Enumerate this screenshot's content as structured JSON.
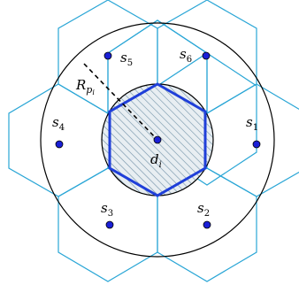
{
  "colors": {
    "cell_outline": "#2aa6d6",
    "center_outline": "#1f3fd9",
    "hatch": "#6f8fa6",
    "hatch_fill": "#e8eef2",
    "point": "#1a1fd6",
    "ring": "#000000",
    "radius_line": "#000000"
  },
  "labels": {
    "radius": {
      "main": "R",
      "sub": "p",
      "subsub": "i"
    },
    "center": {
      "main": "d",
      "sub": "i"
    },
    "sensors": [
      {
        "main": "s",
        "sub": "1"
      },
      {
        "main": "s",
        "sub": "2"
      },
      {
        "main": "s",
        "sub": "3"
      },
      {
        "main": "s",
        "sub": "4"
      },
      {
        "main": "s",
        "sub": "5"
      },
      {
        "main": "s",
        "sub": "6"
      }
    ]
  }
}
